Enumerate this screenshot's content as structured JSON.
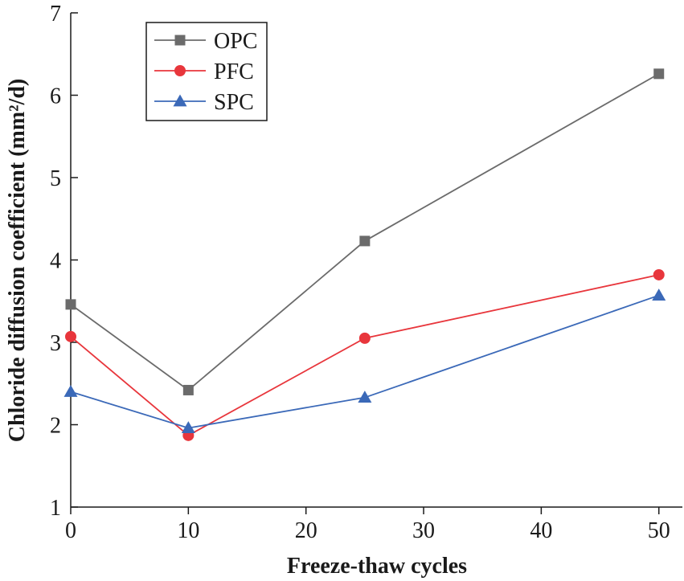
{
  "chart_data": {
    "type": "line",
    "xlabel": "Freeze-thaw cycles",
    "ylabel": "Chloride diffusion coefficient (mm²/d)",
    "x": [
      0,
      10,
      25,
      50
    ],
    "xlim": [
      0,
      52
    ],
    "ylim": [
      1,
      7
    ],
    "xticks": [
      0,
      10,
      20,
      30,
      40,
      50
    ],
    "yticks": [
      1,
      2,
      3,
      4,
      5,
      6,
      7
    ],
    "xtick_labels": [
      "0",
      "10",
      "20",
      "30",
      "40",
      "50"
    ],
    "ytick_labels": [
      "1",
      "2",
      "3",
      "4",
      "5",
      "6",
      "7"
    ],
    "grid": false,
    "legend_position": "top-left",
    "series": [
      {
        "name": "OPC",
        "values": [
          3.46,
          2.42,
          4.23,
          6.26
        ],
        "color": "#6b6b6b",
        "marker": "square"
      },
      {
        "name": "PFC",
        "values": [
          3.07,
          1.87,
          3.05,
          3.82
        ],
        "color": "#e8363c",
        "marker": "circle"
      },
      {
        "name": "SPC",
        "values": [
          2.4,
          1.96,
          2.33,
          3.57
        ],
        "color": "#3b69b8",
        "marker": "triangle"
      }
    ]
  }
}
